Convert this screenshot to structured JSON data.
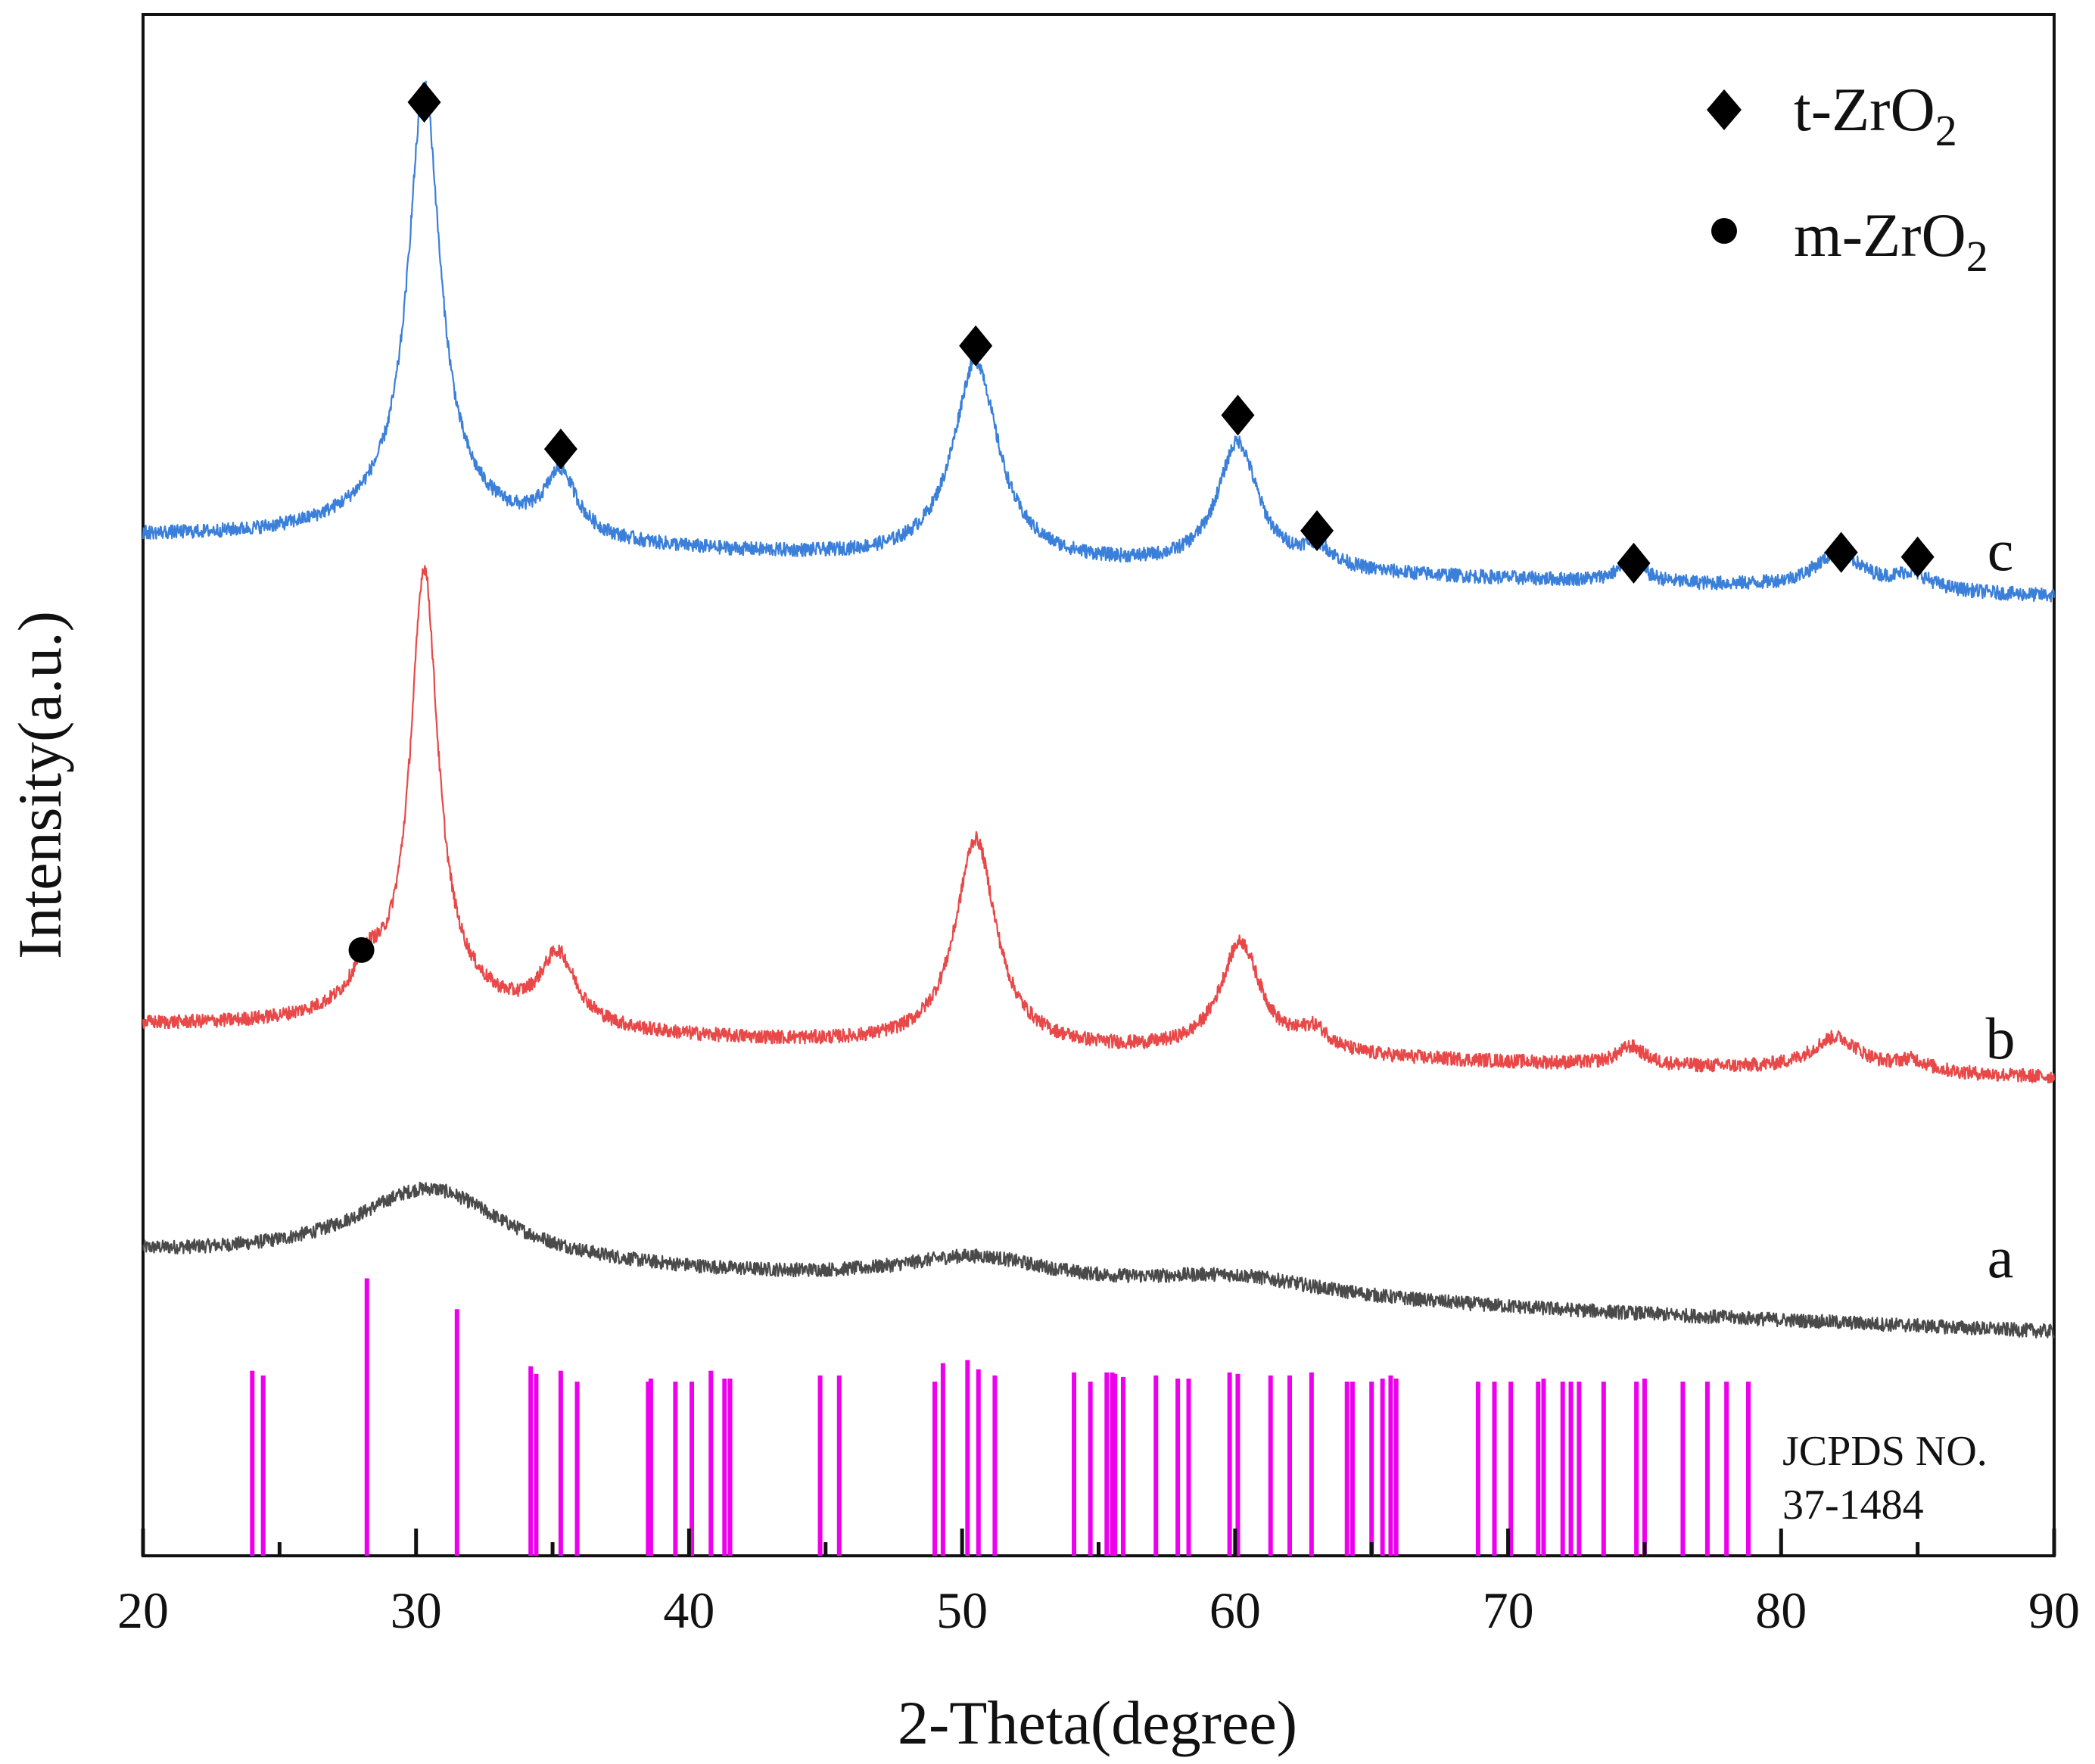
{
  "chart_data": {
    "type": "line",
    "title": "",
    "xlabel": "2-Theta(degree)",
    "ylabel": "Intensity(a.u.)",
    "xlim": [
      20,
      90
    ],
    "ylim": [
      0,
      100
    ],
    "xticks": [
      20,
      30,
      40,
      50,
      60,
      70,
      80,
      90
    ],
    "xtick_labels": [
      "20",
      "30",
      "40",
      "50",
      "60",
      "70",
      "80",
      "90"
    ],
    "grid": false,
    "legend": {
      "placement": "top-right",
      "entries": [
        {
          "marker": "diamond",
          "label_main": "t-ZrO",
          "label_sub": "2"
        },
        {
          "marker": "circle",
          "label_main": "m-ZrO",
          "label_sub": "2"
        }
      ]
    },
    "series": [
      {
        "name": "a",
        "label": "a",
        "color": "#4a4a4a",
        "baseline": 19.5,
        "end_baseline": 14.5,
        "noise": 0.45,
        "peaks": [
          {
            "x": 30.5,
            "height": 5.0,
            "width": 3.4
          },
          {
            "x": 50.5,
            "height": 1.8,
            "width": 3.5
          },
          {
            "x": 60.0,
            "height": 1.3,
            "width": 4.0
          }
        ]
      },
      {
        "name": "b",
        "label": "b",
        "color": "#e84848",
        "baseline": 34.3,
        "end_baseline": 31.0,
        "noise": 0.45,
        "peaks": [
          {
            "x": 28.2,
            "height": 2.2,
            "width": 0.6
          },
          {
            "x": 30.3,
            "height": 27.5,
            "width": 0.6
          },
          {
            "x": 30.5,
            "height": 2.5,
            "width": 3.0
          },
          {
            "x": 35.2,
            "height": 4.5,
            "width": 0.8
          },
          {
            "x": 50.5,
            "height": 13.5,
            "width": 0.9
          },
          {
            "x": 60.2,
            "height": 7.2,
            "width": 0.9
          },
          {
            "x": 62.9,
            "height": 1.4,
            "width": 0.7
          },
          {
            "x": 74.5,
            "height": 1.2,
            "width": 0.6
          },
          {
            "x": 82.0,
            "height": 2.2,
            "width": 1.1
          },
          {
            "x": 84.8,
            "height": 0.7,
            "width": 0.7
          }
        ]
      },
      {
        "name": "c",
        "label": "c",
        "color": "#3a7fd9",
        "baseline": 66.0,
        "end_baseline": 62.2,
        "noise": 0.45,
        "peaks": [
          {
            "x": 30.3,
            "height": 27.5,
            "width": 0.7
          },
          {
            "x": 30.4,
            "height": 2.4,
            "width": 3.5
          },
          {
            "x": 35.3,
            "height": 4.0,
            "width": 0.7
          },
          {
            "x": 50.5,
            "height": 13.0,
            "width": 1.0
          },
          {
            "x": 60.1,
            "height": 8.2,
            "width": 0.9
          },
          {
            "x": 63.0,
            "height": 1.3,
            "width": 0.7
          },
          {
            "x": 74.5,
            "height": 1.3,
            "width": 0.6
          },
          {
            "x": 82.1,
            "height": 2.3,
            "width": 1.1
          },
          {
            "x": 84.8,
            "height": 1.0,
            "width": 0.8
          }
        ]
      }
    ],
    "annotations": {
      "t_zro2_peaks": [
        {
          "x": 30.3,
          "y": 94.3
        },
        {
          "x": 35.3,
          "y": 71.8
        },
        {
          "x": 50.5,
          "y": 78.5
        },
        {
          "x": 60.1,
          "y": 74.0
        },
        {
          "x": 63.0,
          "y": 66.5
        },
        {
          "x": 74.6,
          "y": 64.4
        },
        {
          "x": 82.2,
          "y": 65.1
        },
        {
          "x": 85.0,
          "y": 64.8
        }
      ],
      "m_zro2_peaks": [
        {
          "x": 28.0,
          "y": 39.3
        }
      ]
    },
    "reference_pattern": {
      "label_line1": "JCPDS NO.",
      "label_line2": "37-1484",
      "color": "#ee00ee",
      "lines": [
        {
          "x": 24.0,
          "intensity": 12
        },
        {
          "x": 24.4,
          "intensity": 11.7
        },
        {
          "x": 28.2,
          "intensity": 18
        },
        {
          "x": 31.5,
          "intensity": 16
        },
        {
          "x": 34.2,
          "intensity": 12.3
        },
        {
          "x": 34.4,
          "intensity": 11.8
        },
        {
          "x": 35.3,
          "intensity": 12
        },
        {
          "x": 35.9,
          "intensity": 11.3
        },
        {
          "x": 38.5,
          "intensity": 11.3
        },
        {
          "x": 38.6,
          "intensity": 11.5
        },
        {
          "x": 39.5,
          "intensity": 11.3
        },
        {
          "x": 40.1,
          "intensity": 11.3
        },
        {
          "x": 40.8,
          "intensity": 12
        },
        {
          "x": 41.3,
          "intensity": 11.5
        },
        {
          "x": 41.5,
          "intensity": 11.5
        },
        {
          "x": 44.8,
          "intensity": 11.7
        },
        {
          "x": 45.5,
          "intensity": 11.7
        },
        {
          "x": 49.0,
          "intensity": 11.3
        },
        {
          "x": 49.3,
          "intensity": 12.5
        },
        {
          "x": 50.2,
          "intensity": 12.7
        },
        {
          "x": 50.6,
          "intensity": 12.1
        },
        {
          "x": 51.2,
          "intensity": 11.7
        },
        {
          "x": 54.1,
          "intensity": 11.9
        },
        {
          "x": 54.7,
          "intensity": 11.3
        },
        {
          "x": 55.3,
          "intensity": 11.9
        },
        {
          "x": 55.5,
          "intensity": 11.9
        },
        {
          "x": 55.6,
          "intensity": 11.8
        },
        {
          "x": 55.9,
          "intensity": 11.6
        },
        {
          "x": 57.1,
          "intensity": 11.7
        },
        {
          "x": 57.9,
          "intensity": 11.5
        },
        {
          "x": 58.3,
          "intensity": 11.5
        },
        {
          "x": 59.8,
          "intensity": 11.9
        },
        {
          "x": 60.1,
          "intensity": 11.8
        },
        {
          "x": 61.3,
          "intensity": 11.7
        },
        {
          "x": 62.0,
          "intensity": 11.7
        },
        {
          "x": 62.8,
          "intensity": 11.9
        },
        {
          "x": 64.1,
          "intensity": 11.3
        },
        {
          "x": 64.3,
          "intensity": 11.3
        },
        {
          "x": 65.0,
          "intensity": 11.3
        },
        {
          "x": 65.4,
          "intensity": 11.5
        },
        {
          "x": 65.7,
          "intensity": 11.7
        },
        {
          "x": 65.9,
          "intensity": 11.5
        },
        {
          "x": 68.9,
          "intensity": 11.3
        },
        {
          "x": 69.5,
          "intensity": 11.3
        },
        {
          "x": 70.1,
          "intensity": 11.3
        },
        {
          "x": 71.1,
          "intensity": 11.3
        },
        {
          "x": 71.3,
          "intensity": 11.5
        },
        {
          "x": 72.0,
          "intensity": 11.3
        },
        {
          "x": 72.3,
          "intensity": 11.3
        },
        {
          "x": 72.6,
          "intensity": 11.3
        },
        {
          "x": 73.5,
          "intensity": 11.3
        },
        {
          "x": 74.7,
          "intensity": 11.3
        },
        {
          "x": 75.0,
          "intensity": 11.5
        },
        {
          "x": 76.4,
          "intensity": 11.3
        },
        {
          "x": 77.3,
          "intensity": 11.3
        },
        {
          "x": 78.0,
          "intensity": 11.3
        },
        {
          "x": 78.8,
          "intensity": 11.3
        }
      ]
    }
  }
}
